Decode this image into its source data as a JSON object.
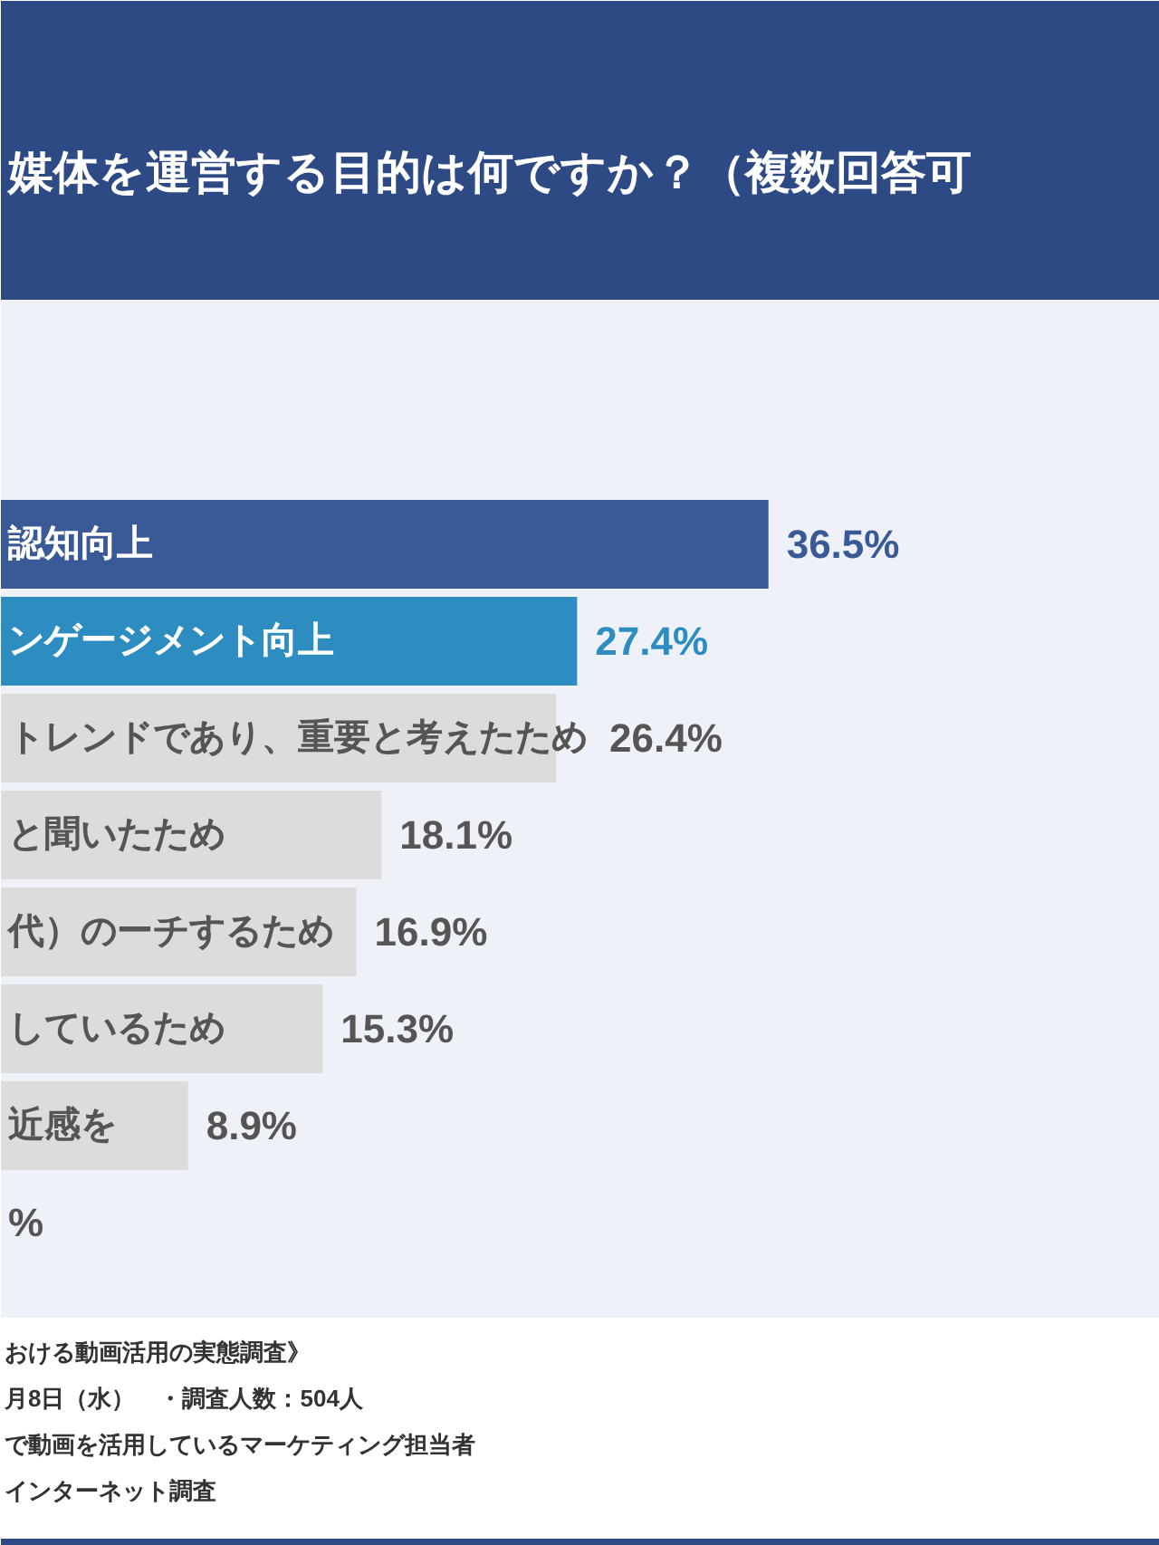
{
  "chart_data": {
    "type": "bar",
    "orientation": "horizontal",
    "title": "媒体を運営する目的は何ですか？（複数回答可",
    "categories": [
      "認知向上",
      "ンゲージメント向上",
      "トレンドであり、重要と考えたため",
      "と聞いたため",
      "代）のーチするため",
      "しているため",
      "近感を",
      null
    ],
    "values": [
      36.5,
      27.4,
      26.4,
      18.1,
      16.9,
      15.3,
      8.9,
      null
    ],
    "colors": [
      "#395a97",
      "#2e8dc0",
      "#dcdcdc",
      "#dcdcdc",
      "#dcdcdc",
      "#dcdcdc",
      "#dcdcdc",
      "#dcdcdc"
    ],
    "value_labels": [
      "36.5%",
      "27.4%",
      "26.4%",
      "18.1%",
      "16.9%",
      "15.3%",
      "8.9%",
      "%"
    ],
    "annotations": [
      "おける動画活用の実態調査》",
      "月8日（水）　・調査人数：504人",
      "で動画を活用しているマーケティング担当者",
      "インターネット調査"
    ]
  }
}
